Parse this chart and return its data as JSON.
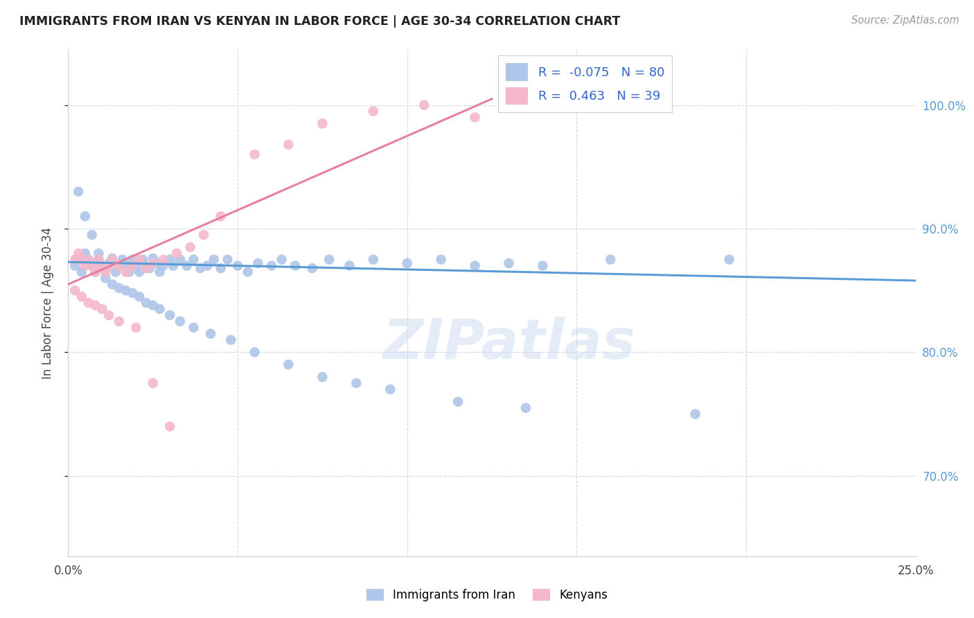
{
  "title": "IMMIGRANTS FROM IRAN VS KENYAN IN LABOR FORCE | AGE 30-34 CORRELATION CHART",
  "source": "Source: ZipAtlas.com",
  "ylabel": "In Labor Force | Age 30-34",
  "xlim": [
    0.0,
    0.25
  ],
  "ylim": [
    0.635,
    1.045
  ],
  "watermark": "ZIPatlas",
  "legend_iran": "Immigrants from Iran",
  "legend_kenya": "Kenyans",
  "r_iran": -0.075,
  "n_iran": 80,
  "r_kenya": 0.463,
  "n_kenya": 39,
  "color_iran": "#aec6e8",
  "color_kenya": "#f5b8cb",
  "trendline_iran_color": "#5b9bd5",
  "trendline_kenya_color": "#e87fa0",
  "background_color": "#ffffff",
  "title_color": "#222222",
  "axis_label_color": "#444444",
  "tick_color_y": "#5b9bd5",
  "grid_color": "#d0d8e8",
  "iran_x": [
    0.002,
    0.003,
    0.004,
    0.005,
    0.006,
    0.007,
    0.008,
    0.009,
    0.01,
    0.011,
    0.012,
    0.013,
    0.014,
    0.015,
    0.016,
    0.017,
    0.018,
    0.019,
    0.02,
    0.021,
    0.022,
    0.023,
    0.024,
    0.025,
    0.026,
    0.027,
    0.028,
    0.03,
    0.031,
    0.033,
    0.035,
    0.037,
    0.039,
    0.041,
    0.043,
    0.045,
    0.047,
    0.05,
    0.053,
    0.056,
    0.06,
    0.063,
    0.067,
    0.072,
    0.077,
    0.083,
    0.09,
    0.1,
    0.11,
    0.12,
    0.13,
    0.14,
    0.16,
    0.195,
    0.003,
    0.005,
    0.007,
    0.009,
    0.011,
    0.013,
    0.015,
    0.017,
    0.019,
    0.021,
    0.023,
    0.025,
    0.027,
    0.03,
    0.033,
    0.037,
    0.042,
    0.048,
    0.055,
    0.065,
    0.075,
    0.085,
    0.095,
    0.115,
    0.135,
    0.185
  ],
  "iran_y": [
    0.87,
    0.875,
    0.865,
    0.88,
    0.875,
    0.87,
    0.865,
    0.875,
    0.87,
    0.868,
    0.872,
    0.876,
    0.865,
    0.87,
    0.875,
    0.87,
    0.865,
    0.875,
    0.87,
    0.865,
    0.875,
    0.87,
    0.868,
    0.876,
    0.872,
    0.865,
    0.87,
    0.875,
    0.87,
    0.875,
    0.87,
    0.875,
    0.868,
    0.87,
    0.875,
    0.868,
    0.875,
    0.87,
    0.865,
    0.872,
    0.87,
    0.875,
    0.87,
    0.868,
    0.875,
    0.87,
    0.875,
    0.872,
    0.875,
    0.87,
    0.872,
    0.87,
    0.875,
    0.875,
    0.93,
    0.91,
    0.895,
    0.88,
    0.86,
    0.855,
    0.852,
    0.85,
    0.848,
    0.845,
    0.84,
    0.838,
    0.835,
    0.83,
    0.825,
    0.82,
    0.815,
    0.81,
    0.8,
    0.79,
    0.78,
    0.775,
    0.77,
    0.76,
    0.755,
    0.75
  ],
  "kenya_x": [
    0.002,
    0.003,
    0.004,
    0.005,
    0.006,
    0.007,
    0.008,
    0.009,
    0.01,
    0.011,
    0.012,
    0.013,
    0.015,
    0.017,
    0.019,
    0.021,
    0.023,
    0.025,
    0.028,
    0.032,
    0.036,
    0.04,
    0.045,
    0.055,
    0.065,
    0.075,
    0.09,
    0.105,
    0.12,
    0.002,
    0.004,
    0.006,
    0.008,
    0.01,
    0.012,
    0.015,
    0.02,
    0.025,
    0.03
  ],
  "kenya_y": [
    0.875,
    0.88,
    0.875,
    0.87,
    0.875,
    0.87,
    0.865,
    0.875,
    0.87,
    0.865,
    0.87,
    0.875,
    0.87,
    0.865,
    0.87,
    0.875,
    0.868,
    0.872,
    0.875,
    0.88,
    0.885,
    0.895,
    0.91,
    0.96,
    0.968,
    0.985,
    0.995,
    1.0,
    0.99,
    0.85,
    0.845,
    0.84,
    0.838,
    0.835,
    0.83,
    0.825,
    0.82,
    0.775,
    0.74
  ],
  "iran_trend_x0": 0.0,
  "iran_trend_x1": 0.25,
  "iran_trend_y0": 0.873,
  "iran_trend_y1": 0.858,
  "kenya_trend_x0": 0.0,
  "kenya_trend_x1": 0.125,
  "kenya_trend_y0": 0.855,
  "kenya_trend_y1": 1.005
}
